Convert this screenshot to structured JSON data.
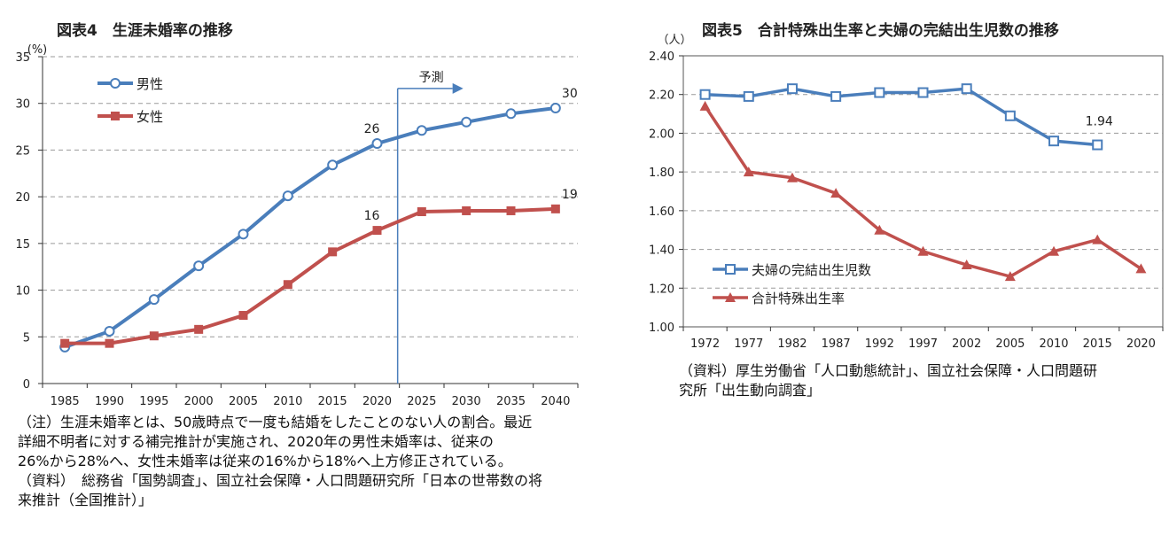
{
  "chart_data": [
    {
      "id": "fig4",
      "type": "line",
      "title": "図表4　生涯未婚率の推移",
      "ylabel": "(%)",
      "xlabel": "",
      "ylim": [
        0,
        35
      ],
      "yticks": [
        0,
        5,
        10,
        15,
        20,
        25,
        30,
        35
      ],
      "categories": [
        "1985",
        "1990",
        "1995",
        "2000",
        "2005",
        "2010",
        "2015",
        "2020",
        "2025",
        "2030",
        "2035",
        "2040"
      ],
      "series": [
        {
          "name": "男性",
          "color": "#4a7ebb",
          "marker": "circle",
          "values": [
            3.9,
            5.6,
            9.0,
            12.6,
            16.0,
            20.1,
            23.4,
            25.7,
            27.1,
            28.0,
            28.9,
            29.5
          ]
        },
        {
          "name": "女性",
          "color": "#c0504d",
          "marker": "square",
          "values": [
            4.3,
            4.3,
            5.1,
            5.8,
            7.3,
            10.6,
            14.1,
            16.4,
            18.4,
            18.5,
            18.5,
            18.7
          ]
        }
      ],
      "data_labels": [
        {
          "series": 0,
          "index": 7,
          "text": "26"
        },
        {
          "series": 0,
          "index": 11,
          "text": "30"
        },
        {
          "series": 1,
          "index": 7,
          "text": "16"
        },
        {
          "series": 1,
          "index": 11,
          "text": "19"
        }
      ],
      "annotation": {
        "text": "予測",
        "at_category": "2020"
      },
      "grid": true,
      "legend": "top-left"
    },
    {
      "id": "fig5",
      "type": "line",
      "title": "図表5　合計特殊出生率と夫婦の完結出生児数の推移",
      "ylabel": "（人）",
      "xlabel": "",
      "ylim": [
        1.0,
        2.4
      ],
      "yticks": [
        "1.00",
        "1.20",
        "1.40",
        "1.60",
        "1.80",
        "2.00",
        "2.20",
        "2.40"
      ],
      "categories": [
        "1972",
        "1977",
        "1982",
        "1987",
        "1992",
        "1997",
        "2002",
        "2005",
        "2010",
        "2015",
        "2020"
      ],
      "series": [
        {
          "name": "夫婦の完結出生児数",
          "color": "#4a7ebb",
          "marker": "open-square",
          "values": [
            2.2,
            2.19,
            2.23,
            2.19,
            2.21,
            2.21,
            2.23,
            2.09,
            1.96,
            1.94,
            null
          ]
        },
        {
          "name": "合計特殊出生率",
          "color": "#c0504d",
          "marker": "triangle",
          "values": [
            2.14,
            1.8,
            1.77,
            1.69,
            1.5,
            1.39,
            1.32,
            1.26,
            1.39,
            1.45,
            1.3
          ]
        }
      ],
      "data_labels": [
        {
          "series": 0,
          "index": 9,
          "text": "1.94"
        }
      ],
      "grid": true,
      "legend": "bottom-left"
    }
  ],
  "notes": {
    "fig4": [
      "（注）生涯未婚率とは、50歳時点で一度も結婚をしたことのない人の割合。最近",
      "詳細不明者に対する補完推計が実施され、2020年の男性未婚率は、従来の",
      "26%から28%へ、女性未婚率は従来の16%から18%へ上方修正されている。",
      "（資料）　総務省「国勢調査」、国立社会保障・人口問題研究所「日本の世帯数の将",
      "来推計（全国推計）」"
    ],
    "fig5": [
      "（資料）厚生労働省「人口動態統計」、国立社会保障・人口問題研",
      "究所「出生動向調査」"
    ]
  }
}
